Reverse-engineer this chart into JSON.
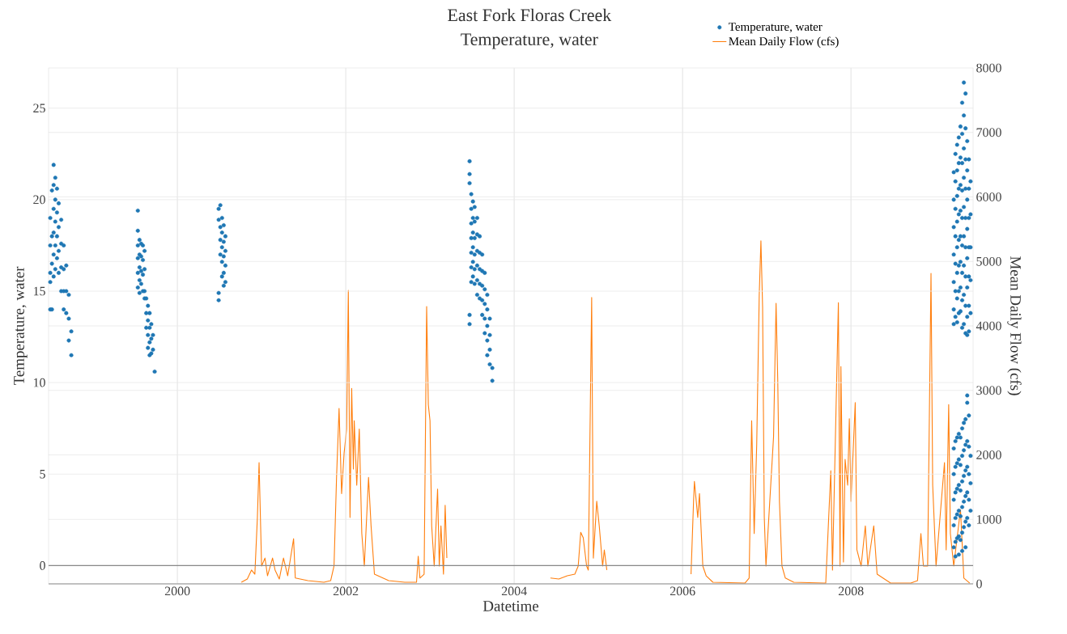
{
  "chart_data": {
    "type": "scatter",
    "title": "East Fork Floras Creek",
    "subtitle": "Temperature, water",
    "xlabel": "Datetime",
    "ylabel": "Temperature, water",
    "y2label": "Mean Daily Flow (cfs)",
    "xlim": [
      1998.47,
      2009.45
    ],
    "xticks": [
      2000,
      2002,
      2004,
      2006,
      2008
    ],
    "ylim": [
      -1,
      27.2
    ],
    "yticks": [
      0,
      5,
      10,
      15,
      20,
      25
    ],
    "y2lim": [
      0,
      8000
    ],
    "y2ticks": [
      0,
      1000,
      2000,
      3000,
      4000,
      5000,
      6000,
      7000,
      8000
    ],
    "grid": true,
    "legend": "top right",
    "ref_lines": [
      {
        "axis": "y",
        "value": 0,
        "color": "#888888"
      }
    ],
    "series": [
      {
        "name": "Temperature, water",
        "color": "#1f77b4",
        "marker": "circle",
        "x": [
          1998.49,
          1998.49,
          1998.49,
          1998.49,
          1998.49,
          1998.51,
          1998.51,
          1998.51,
          1998.51,
          1998.53,
          1998.53,
          1998.53,
          1998.53,
          1998.53,
          1998.53,
          1998.55,
          1998.55,
          1998.55,
          1998.55,
          1998.55,
          1998.57,
          1998.57,
          1998.57,
          1998.57,
          1998.59,
          1998.59,
          1998.59,
          1998.59,
          1998.62,
          1998.62,
          1998.62,
          1998.62,
          1998.65,
          1998.65,
          1998.65,
          1998.65,
          1998.68,
          1998.68,
          1998.68,
          1998.71,
          1998.71,
          1998.71,
          1998.74,
          1998.74,
          1999.53,
          1999.53,
          1999.53,
          1999.53,
          1999.53,
          1999.53,
          1999.55,
          1999.55,
          1999.55,
          1999.55,
          1999.55,
          1999.57,
          1999.57,
          1999.57,
          1999.57,
          1999.59,
          1999.59,
          1999.59,
          1999.59,
          1999.61,
          1999.61,
          1999.61,
          1999.61,
          1999.63,
          1999.63,
          1999.63,
          1999.65,
          1999.65,
          1999.65,
          1999.65,
          1999.67,
          1999.67,
          1999.67,
          1999.67,
          1999.69,
          1999.69,
          1999.69,
          1999.71,
          1999.71,
          1999.73,
          2000.49,
          2000.49,
          2000.49,
          2000.49,
          2000.51,
          2000.51,
          2000.51,
          2000.51,
          2000.53,
          2000.53,
          2000.53,
          2000.53,
          2000.53,
          2000.55,
          2000.55,
          2000.55,
          2000.55,
          2000.55,
          2000.57,
          2000.57,
          2000.57,
          2000.57,
          2003.47,
          2003.47,
          2003.47,
          2003.47,
          2003.47,
          2003.49,
          2003.49,
          2003.49,
          2003.49,
          2003.49,
          2003.49,
          2003.49,
          2003.51,
          2003.51,
          2003.51,
          2003.51,
          2003.51,
          2003.51,
          2003.53,
          2003.53,
          2003.53,
          2003.53,
          2003.53,
          2003.53,
          2003.56,
          2003.56,
          2003.56,
          2003.56,
          2003.56,
          2003.56,
          2003.59,
          2003.59,
          2003.59,
          2003.59,
          2003.59,
          2003.62,
          2003.62,
          2003.62,
          2003.62,
          2003.62,
          2003.65,
          2003.65,
          2003.65,
          2003.65,
          2003.65,
          2003.68,
          2003.68,
          2003.68,
          2003.68,
          2003.68,
          2003.71,
          2003.71,
          2003.71,
          2003.71,
          2003.74,
          2003.74,
          2009.22,
          2009.22,
          2009.22,
          2009.22,
          2009.22,
          2009.22,
          2009.22,
          2009.24,
          2009.24,
          2009.24,
          2009.24,
          2009.24,
          2009.24,
          2009.24,
          2009.26,
          2009.26,
          2009.26,
          2009.26,
          2009.26,
          2009.26,
          2009.26,
          2009.26,
          2009.28,
          2009.28,
          2009.28,
          2009.28,
          2009.28,
          2009.28,
          2009.28,
          2009.28,
          2009.3,
          2009.3,
          2009.3,
          2009.3,
          2009.3,
          2009.3,
          2009.3,
          2009.3,
          2009.32,
          2009.32,
          2009.32,
          2009.32,
          2009.32,
          2009.32,
          2009.32,
          2009.32,
          2009.32,
          2009.34,
          2009.34,
          2009.34,
          2009.34,
          2009.34,
          2009.34,
          2009.34,
          2009.34,
          2009.34,
          2009.36,
          2009.36,
          2009.36,
          2009.36,
          2009.36,
          2009.36,
          2009.36,
          2009.36,
          2009.36,
          2009.38,
          2009.38,
          2009.38,
          2009.38,
          2009.38,
          2009.38,
          2009.38,
          2009.38,
          2009.4,
          2009.4,
          2009.4,
          2009.4,
          2009.4,
          2009.4,
          2009.4,
          2009.42,
          2009.42,
          2009.42,
          2009.42,
          2009.42,
          2009.22,
          2009.22,
          2009.22,
          2009.22,
          2009.22,
          2009.24,
          2009.24,
          2009.24,
          2009.24,
          2009.24,
          2009.24,
          2009.26,
          2009.26,
          2009.26,
          2009.26,
          2009.26,
          2009.28,
          2009.28,
          2009.28,
          2009.28,
          2009.28,
          2009.28,
          2009.3,
          2009.3,
          2009.3,
          2009.3,
          2009.3,
          2009.32,
          2009.32,
          2009.32,
          2009.32,
          2009.32,
          2009.32,
          2009.34,
          2009.34,
          2009.34,
          2009.34,
          2009.34,
          2009.36,
          2009.36,
          2009.36,
          2009.36,
          2009.36,
          2009.36,
          2009.38,
          2009.38,
          2009.38,
          2009.38,
          2009.38,
          2009.38,
          2009.4,
          2009.4,
          2009.4,
          2009.4,
          2009.4,
          2009.42,
          2009.42,
          2009.42
        ],
        "values": [
          16.0,
          17.5,
          14.0,
          19.0,
          15.5,
          20.5,
          18.0,
          16.5,
          14.0,
          21.9,
          20.8,
          19.5,
          18.2,
          17.0,
          15.8,
          21.2,
          20.0,
          18.8,
          17.5,
          16.2,
          20.6,
          19.3,
          18.0,
          16.8,
          19.8,
          18.5,
          17.2,
          16.0,
          18.9,
          17.6,
          16.3,
          15.0,
          17.5,
          16.2,
          15.0,
          14.0,
          16.4,
          15.0,
          13.8,
          14.8,
          13.5,
          12.3,
          12.8,
          11.5,
          19.4,
          18.3,
          17.5,
          16.8,
          16.0,
          15.2,
          17.8,
          17.0,
          16.3,
          15.6,
          14.9,
          17.6,
          16.9,
          16.1,
          15.4,
          17.5,
          16.7,
          15.9,
          15.0,
          17.2,
          16.2,
          15.0,
          14.6,
          14.6,
          13.8,
          13.0,
          14.2,
          13.4,
          12.6,
          11.9,
          13.8,
          13.0,
          12.2,
          11.5,
          13.2,
          12.4,
          11.6,
          12.6,
          11.8,
          10.6,
          19.5,
          18.9,
          14.9,
          14.5,
          19.7,
          18.5,
          17.8,
          17.0,
          19.0,
          18.2,
          17.4,
          16.6,
          15.8,
          18.6,
          17.7,
          16.9,
          16.0,
          15.3,
          18.0,
          17.2,
          16.4,
          15.5,
          22.1,
          21.4,
          20.9,
          13.7,
          13.2,
          20.3,
          19.5,
          18.7,
          17.9,
          17.1,
          16.3,
          15.5,
          19.9,
          19.0,
          18.2,
          17.4,
          16.6,
          15.8,
          19.6,
          18.8,
          17.9,
          17.0,
          16.2,
          15.4,
          19.0,
          18.1,
          17.2,
          16.4,
          15.6,
          14.8,
          18.0,
          17.1,
          16.2,
          15.4,
          14.6,
          17.0,
          16.1,
          15.3,
          14.5,
          13.7,
          16.0,
          15.1,
          14.3,
          13.5,
          12.7,
          14.8,
          14.0,
          13.1,
          12.3,
          11.5,
          13.5,
          12.6,
          11.8,
          11.0,
          10.8,
          10.1,
          21.5,
          20.0,
          18.5,
          17.0,
          15.5,
          14.0,
          13.2,
          22.5,
          21.0,
          19.5,
          18.0,
          16.5,
          15.0,
          13.6,
          23.0,
          21.6,
          20.2,
          18.8,
          17.4,
          16.0,
          14.6,
          13.3,
          23.4,
          22.0,
          20.6,
          19.2,
          17.8,
          16.4,
          15.0,
          13.8,
          24.0,
          22.3,
          20.8,
          19.4,
          18.0,
          16.6,
          15.2,
          13.9,
          25.3,
          23.6,
          22.0,
          20.5,
          19.0,
          17.5,
          16.0,
          14.5,
          13.0,
          26.4,
          24.6,
          22.8,
          21.2,
          19.6,
          18.0,
          16.4,
          14.8,
          13.2,
          25.8,
          23.9,
          22.2,
          20.6,
          19.0,
          17.4,
          15.8,
          14.2,
          12.7,
          23.2,
          21.6,
          20.0,
          18.4,
          16.8,
          15.2,
          13.6,
          12.6,
          22.2,
          20.6,
          19.0,
          17.4,
          15.8,
          14.2,
          12.8,
          21.0,
          19.2,
          17.4,
          15.6,
          13.8,
          6.4,
          5.0,
          3.6,
          2.2,
          1.0,
          6.8,
          5.4,
          4.0,
          2.6,
          1.3,
          0.5,
          7.0,
          5.6,
          4.2,
          2.8,
          1.5,
          7.2,
          5.8,
          4.4,
          3.0,
          1.6,
          0.6,
          7.0,
          5.5,
          4.1,
          2.7,
          1.4,
          7.5,
          6.0,
          4.6,
          3.2,
          1.8,
          0.8,
          7.8,
          6.3,
          4.9,
          3.5,
          2.1,
          8.0,
          6.6,
          5.2,
          3.8,
          2.4,
          1.0,
          9.3,
          8.9,
          6.8,
          5.4,
          4.0,
          2.6,
          8.2,
          6.5,
          5.0,
          3.6,
          2.2,
          6.0,
          4.5,
          3.0
        ]
      },
      {
        "name": "Mean Daily Flow (cfs)",
        "type": "line",
        "axis": "y2",
        "color": "#ff7f0e",
        "line_style": "solid",
        "x": [
          2000.76,
          2000.83,
          2000.88,
          2000.92,
          2000.95,
          2000.97,
          2001.0,
          2001.04,
          2001.07,
          2001.13,
          2001.16,
          2001.21,
          2001.26,
          2001.31,
          2001.38,
          2001.4,
          2001.55,
          2001.74,
          2001.82,
          2001.86,
          2001.89,
          2001.92,
          2001.95,
          2001.98,
          2002.01,
          2002.03,
          2002.05,
          2002.07,
          2002.09,
          2002.1,
          2002.13,
          2002.16,
          2002.19,
          2002.22,
          2002.27,
          2002.3,
          2002.34,
          2002.51,
          2002.7,
          2002.84,
          2002.86,
          2002.88,
          2002.93,
          2002.96,
          2002.98,
          2003.0,
          2003.02,
          2003.05,
          2003.09,
          2003.11,
          2003.13,
          2003.16,
          2003.18,
          2003.2,
          2003.8,
          2004.43,
          2004.53,
          2004.63,
          2004.72,
          2004.76,
          2004.79,
          2004.82,
          2004.86,
          2004.88,
          2004.92,
          2004.94,
          2004.98,
          2005.01,
          2005.05,
          2005.07,
          2005.1,
          2005.6,
          2006.1,
          2006.13,
          2006.14,
          2006.18,
          2006.2,
          2006.24,
          2006.28,
          2006.36,
          2006.74,
          2006.79,
          2006.82,
          2006.85,
          2006.88,
          2006.91,
          2006.93,
          2006.95,
          2006.97,
          2006.99,
          2007.08,
          2007.11,
          2007.13,
          2007.15,
          2007.18,
          2007.22,
          2007.32,
          2007.7,
          2007.76,
          2007.78,
          2007.85,
          2007.87,
          2007.88,
          2007.91,
          2007.93,
          2007.96,
          2007.98,
          2008.0,
          2008.05,
          2008.07,
          2008.12,
          2008.17,
          2008.2,
          2008.27,
          2008.31,
          2008.47,
          2008.71,
          2008.79,
          2008.83,
          2008.86,
          2008.91,
          2008.95,
          2008.97,
          2009.01,
          2009.11,
          2009.13,
          2009.16,
          2009.18,
          2009.22,
          2009.3,
          2009.34,
          2009.41
        ],
        "values": [
          25,
          75,
          214,
          150,
          1030,
          1880,
          276,
          400,
          125,
          400,
          214,
          75,
          400,
          125,
          700,
          90,
          50,
          25,
          50,
          276,
          1650,
          2720,
          1400,
          2030,
          2400,
          4550,
          1030,
          3030,
          1780,
          2530,
          1530,
          2400,
          780,
          276,
          1650,
          900,
          150,
          50,
          25,
          25,
          430,
          90,
          150,
          4300,
          2780,
          2530,
          900,
          276,
          1470,
          276,
          900,
          150,
          1220,
          400,
          null,
          90,
          75,
          125,
          150,
          276,
          800,
          715,
          276,
          214,
          4440,
          400,
          1280,
          900,
          276,
          527,
          214,
          null,
          150,
          1280,
          1590,
          1030,
          1400,
          276,
          125,
          25,
          12,
          90,
          2530,
          780,
          2160,
          4480,
          5320,
          4290,
          1030,
          276,
          2280,
          4350,
          3160,
          1280,
          276,
          90,
          25,
          12,
          1755,
          214,
          4360,
          276,
          3370,
          340,
          1930,
          1530,
          2560,
          1280,
          2810,
          527,
          276,
          900,
          276,
          900,
          150,
          12,
          12,
          50,
          780,
          276,
          276,
          4815,
          1530,
          276,
          1880,
          527,
          2780,
          780,
          276,
          1150,
          90,
          12
        ]
      }
    ]
  }
}
